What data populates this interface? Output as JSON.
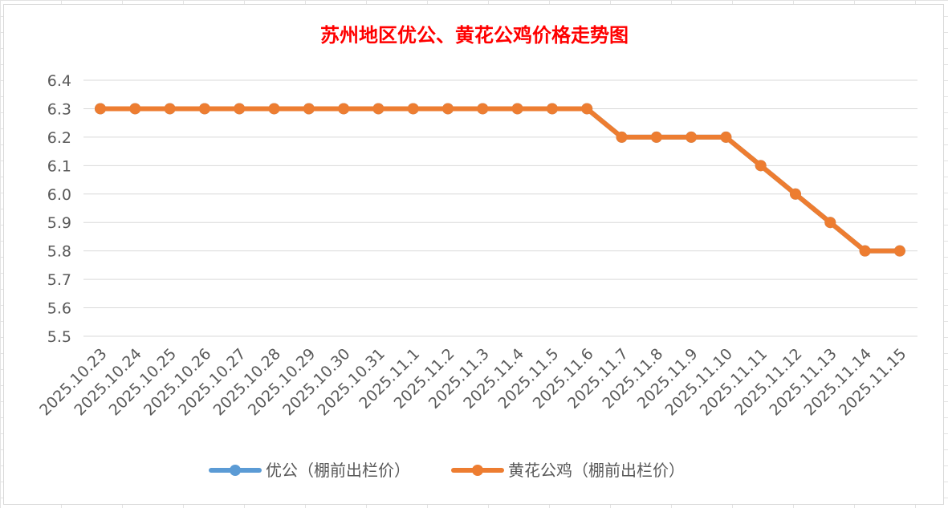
{
  "chart_data": {
    "type": "line",
    "title": "苏州地区优公、黄花公鸡价格走势图",
    "xlabel": "",
    "ylabel": "",
    "ylim": [
      5.5,
      6.4
    ],
    "y_ticks": [
      "6.4",
      "6.3",
      "6.2",
      "6.1",
      "6.0",
      "5.9",
      "5.8",
      "5.7",
      "5.6",
      "5.5"
    ],
    "grid": true,
    "legend_position": "bottom",
    "categories": [
      "2025.10.23",
      "2025.10.24",
      "2025.10.25",
      "2025.10.26",
      "2025.10.27",
      "2025.10.28",
      "2025.10.29",
      "2025.10.30",
      "2025.10.31",
      "2025.11.1",
      "2025.11.2",
      "2025.11.3",
      "2025.11.4",
      "2025.11.5",
      "2025.11.6",
      "2025.11.7",
      "2025.11.8",
      "2025.11.9",
      "2025.11.10",
      "2025.11.11",
      "2025.11.12",
      "2025.11.13",
      "2025.11.14",
      "2025.11.15"
    ],
    "series": [
      {
        "name": "优公（棚前出栏价）",
        "color": "#5b9bd5",
        "values": [
          6.3,
          6.3,
          6.3,
          6.3,
          6.3,
          6.3,
          6.3,
          6.3,
          6.3,
          6.3,
          6.3,
          6.3,
          6.3,
          6.3,
          6.3,
          6.2,
          6.2,
          6.2,
          6.2,
          6.1,
          6.0,
          5.9,
          5.8,
          5.8
        ]
      },
      {
        "name": "黄花公鸡（棚前出栏价）",
        "color": "#ed7d31",
        "values": [
          6.3,
          6.3,
          6.3,
          6.3,
          6.3,
          6.3,
          6.3,
          6.3,
          6.3,
          6.3,
          6.3,
          6.3,
          6.3,
          6.3,
          6.3,
          6.2,
          6.2,
          6.2,
          6.2,
          6.1,
          6.0,
          5.9,
          5.8,
          5.8
        ]
      }
    ],
    "colors": {
      "title": "#ff0000",
      "gridline": "#d9d9d9",
      "tick_text": "#595959"
    }
  }
}
